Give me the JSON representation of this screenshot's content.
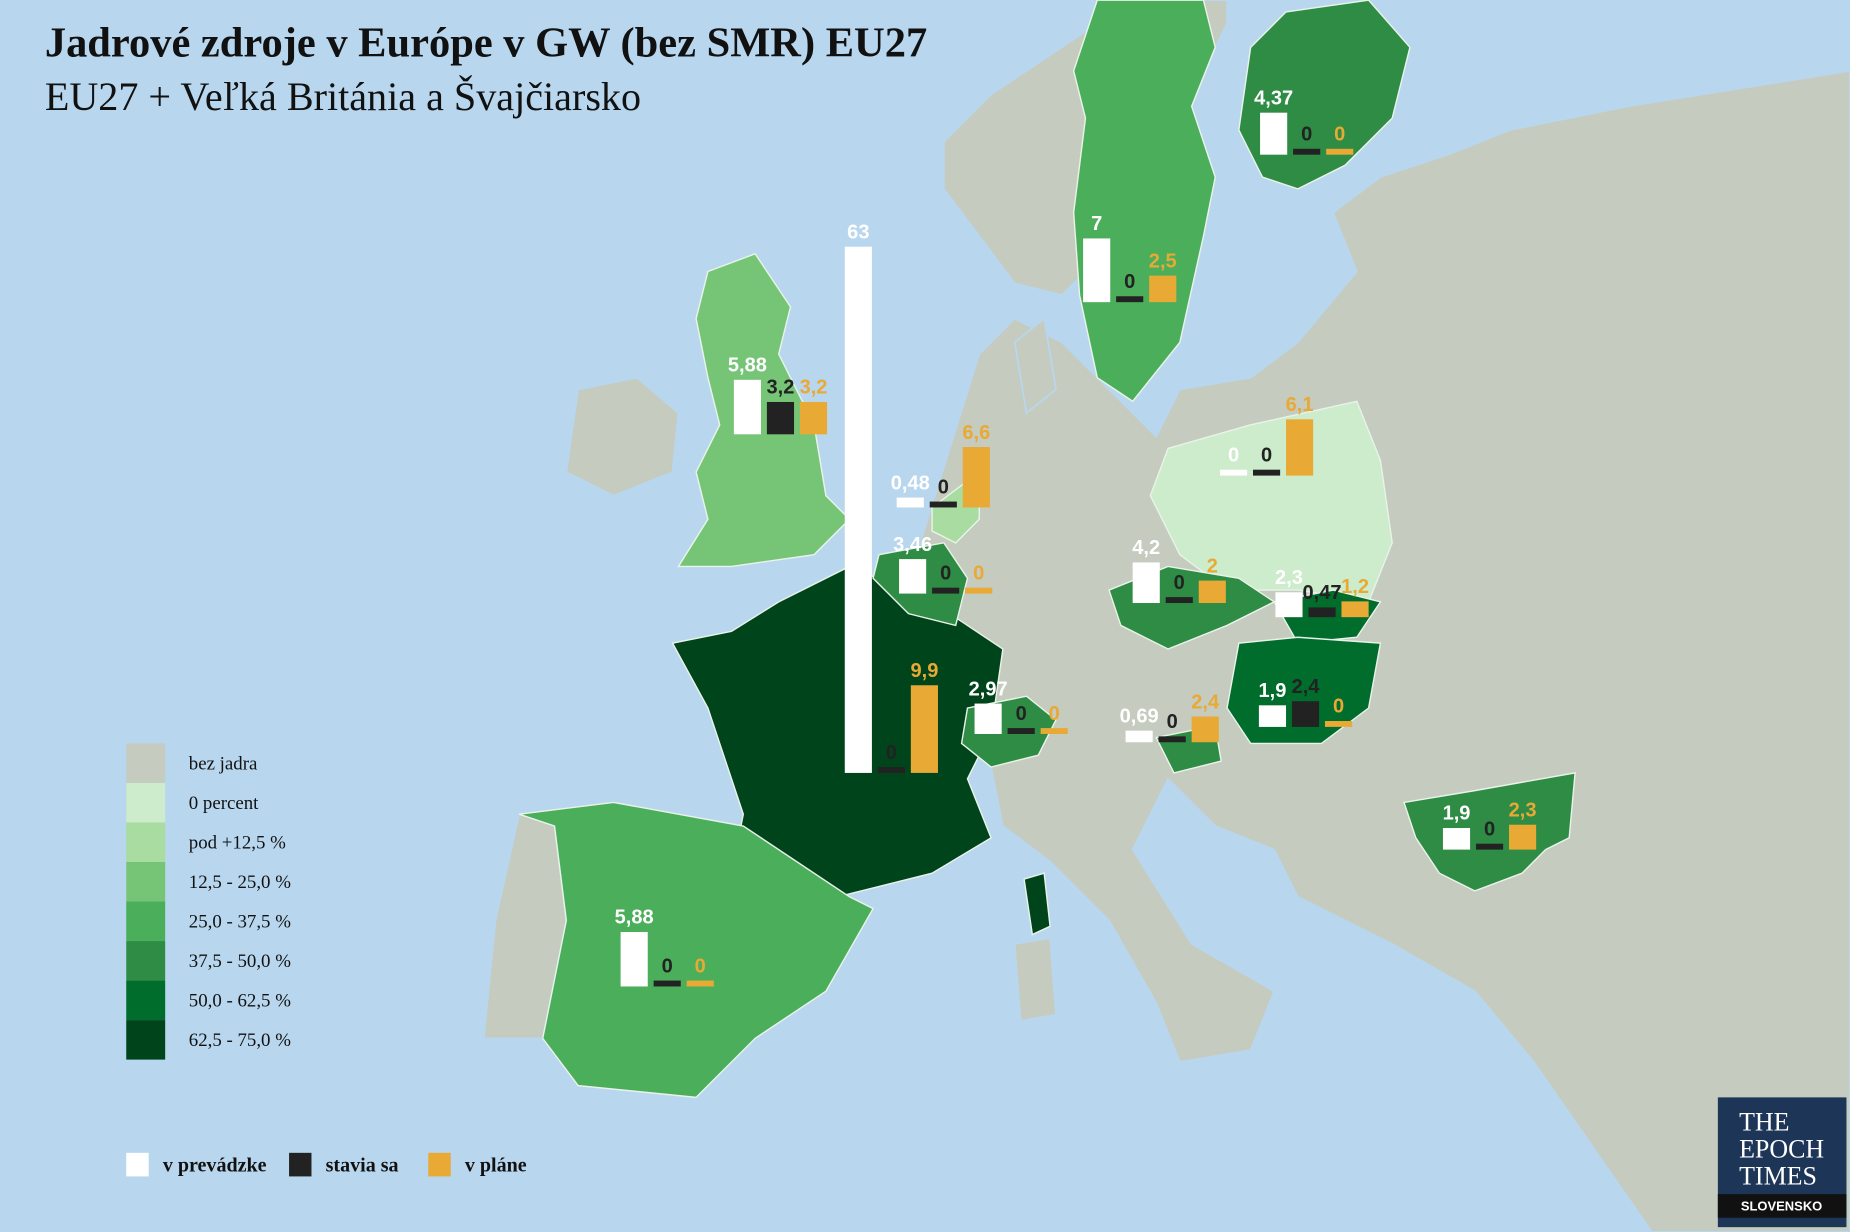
{
  "title": "Jadrové zdroje v Európe v GW (bez SMR) EU27",
  "subtitle": "EU27 + Veľká Británia a Švajčiarsko",
  "legend": {
    "classes": [
      {
        "label": "bez jadra",
        "color": "#c5cbbf"
      },
      {
        "label": "0 percent",
        "color": "#cdeccb"
      },
      {
        "label": "pod +12,5 %",
        "color": "#a8dca0"
      },
      {
        "label": "12,5 - 25,0 %",
        "color": "#76c577"
      },
      {
        "label": "25,0 - 37,5 %",
        "color": "#4bae5b"
      },
      {
        "label": "37,5 - 50,0 %",
        "color": "#2e8c44"
      },
      {
        "label": "50,0 - 62,5 %",
        "color": "#006d2c"
      },
      {
        "label": "62,5 - 75,0 %",
        "color": "#00441c"
      }
    ]
  },
  "series": [
    {
      "name": "v prevádzke",
      "color": "#ffffff"
    },
    {
      "name": "stavia sa",
      "color": "#222222"
    },
    {
      "name": "v pláne",
      "color": "#e8a935"
    }
  ],
  "groups": [
    {
      "values": [
        5.88,
        3.2,
        3.2
      ],
      "value_labels": [
        "5,88",
        "3,2",
        "3,2"
      ]
    },
    {
      "values": [
        63,
        0,
        9.9
      ],
      "value_labels": [
        "63",
        "0",
        "9,9"
      ]
    },
    {
      "values": [
        0.48,
        0,
        6.6
      ],
      "value_labels": [
        "0,48",
        "0",
        "6,6"
      ]
    },
    {
      "values": [
        3.46,
        0,
        0
      ],
      "value_labels": [
        "3,46",
        "0",
        "0"
      ]
    },
    {
      "values": [
        2.97,
        0,
        0
      ],
      "value_labels": [
        "2,97",
        "0",
        "0"
      ]
    },
    {
      "values": [
        5.88,
        0,
        0
      ],
      "value_labels": [
        "5,88",
        "0",
        "0"
      ]
    },
    {
      "values": [
        7,
        0,
        2.5
      ],
      "value_labels": [
        "7",
        "0",
        "2,5"
      ]
    },
    {
      "values": [
        4.37,
        0,
        0
      ],
      "value_labels": [
        "4,37",
        "0",
        "0"
      ]
    },
    {
      "values": [
        0,
        0,
        6.1
      ],
      "value_labels": [
        "0",
        "0",
        "6,1"
      ]
    },
    {
      "values": [
        4.2,
        0,
        2
      ],
      "value_labels": [
        "4,2",
        "0",
        "2"
      ]
    },
    {
      "values": [
        2.3,
        0.47,
        1.2
      ],
      "value_labels": [
        "2,3",
        "0,47",
        "1,2"
      ]
    },
    {
      "values": [
        1.9,
        2.4,
        0
      ],
      "value_labels": [
        "1,9",
        "2,4",
        "0"
      ]
    },
    {
      "values": [
        0.69,
        0,
        2.4
      ],
      "value_labels": [
        "0,69",
        "0",
        "2,4"
      ]
    },
    {
      "values": [
        1.9,
        0,
        2.3
      ],
      "value_labels": [
        "1,9",
        "0",
        "2,3"
      ]
    }
  ],
  "logo": {
    "lines": [
      "THE",
      "EPOCH",
      "TIMES"
    ],
    "sub": "SLOVENSKO"
  }
}
